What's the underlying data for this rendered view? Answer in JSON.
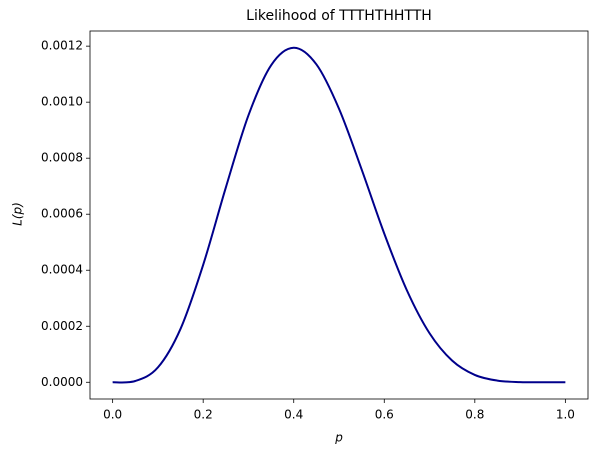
{
  "chart_data": {
    "type": "line",
    "title": "Likelihood of TTTHTHHTTH",
    "xlabel": "p",
    "ylabel": "L(p)",
    "x": [
      0,
      0.05,
      0.1,
      0.15,
      0.2,
      0.25,
      0.3,
      0.35,
      0.4,
      0.45,
      0.5,
      0.55,
      0.6,
      0.65,
      0.7,
      0.75,
      0.8,
      0.85,
      0.9,
      0.95,
      1
    ],
    "series": [
      {
        "name": "L(p)",
        "color": "#00008b",
        "values": [
          0,
          4.594e-06,
          5.314e-05,
          0.00019093,
          0.0004194,
          0.0006952,
          0.000953,
          0.0011318,
          0.0011944,
          0.0011351,
          0.0009766,
          0.0007599,
          0.0005308,
          0.00032815,
          0.000175,
          7.725e-05,
          2.621e-05,
          5.946e-06,
          6.561e-07,
          1.273e-08,
          0
        ]
      }
    ],
    "xlim": [
      -0.05,
      1.05
    ],
    "ylim": [
      -5.97e-05,
      0.0012541
    ],
    "xticks": [
      {
        "value": 0,
        "label": "0.0"
      },
      {
        "value": 0.2,
        "label": "0.2"
      },
      {
        "value": 0.4,
        "label": "0.4"
      },
      {
        "value": 0.6,
        "label": "0.6"
      },
      {
        "value": 0.8,
        "label": "0.8"
      },
      {
        "value": 1,
        "label": "1.0"
      }
    ],
    "yticks": [
      {
        "value": 0,
        "label": "0.0000"
      },
      {
        "value": 0.0002,
        "label": "0.0002"
      },
      {
        "value": 0.0004,
        "label": "0.0004"
      },
      {
        "value": 0.0006,
        "label": "0.0006"
      },
      {
        "value": 0.0008,
        "label": "0.0008"
      },
      {
        "value": 0.001,
        "label": "0.0010"
      },
      {
        "value": 0.0012,
        "label": "0.0012"
      }
    ],
    "grid": false
  }
}
